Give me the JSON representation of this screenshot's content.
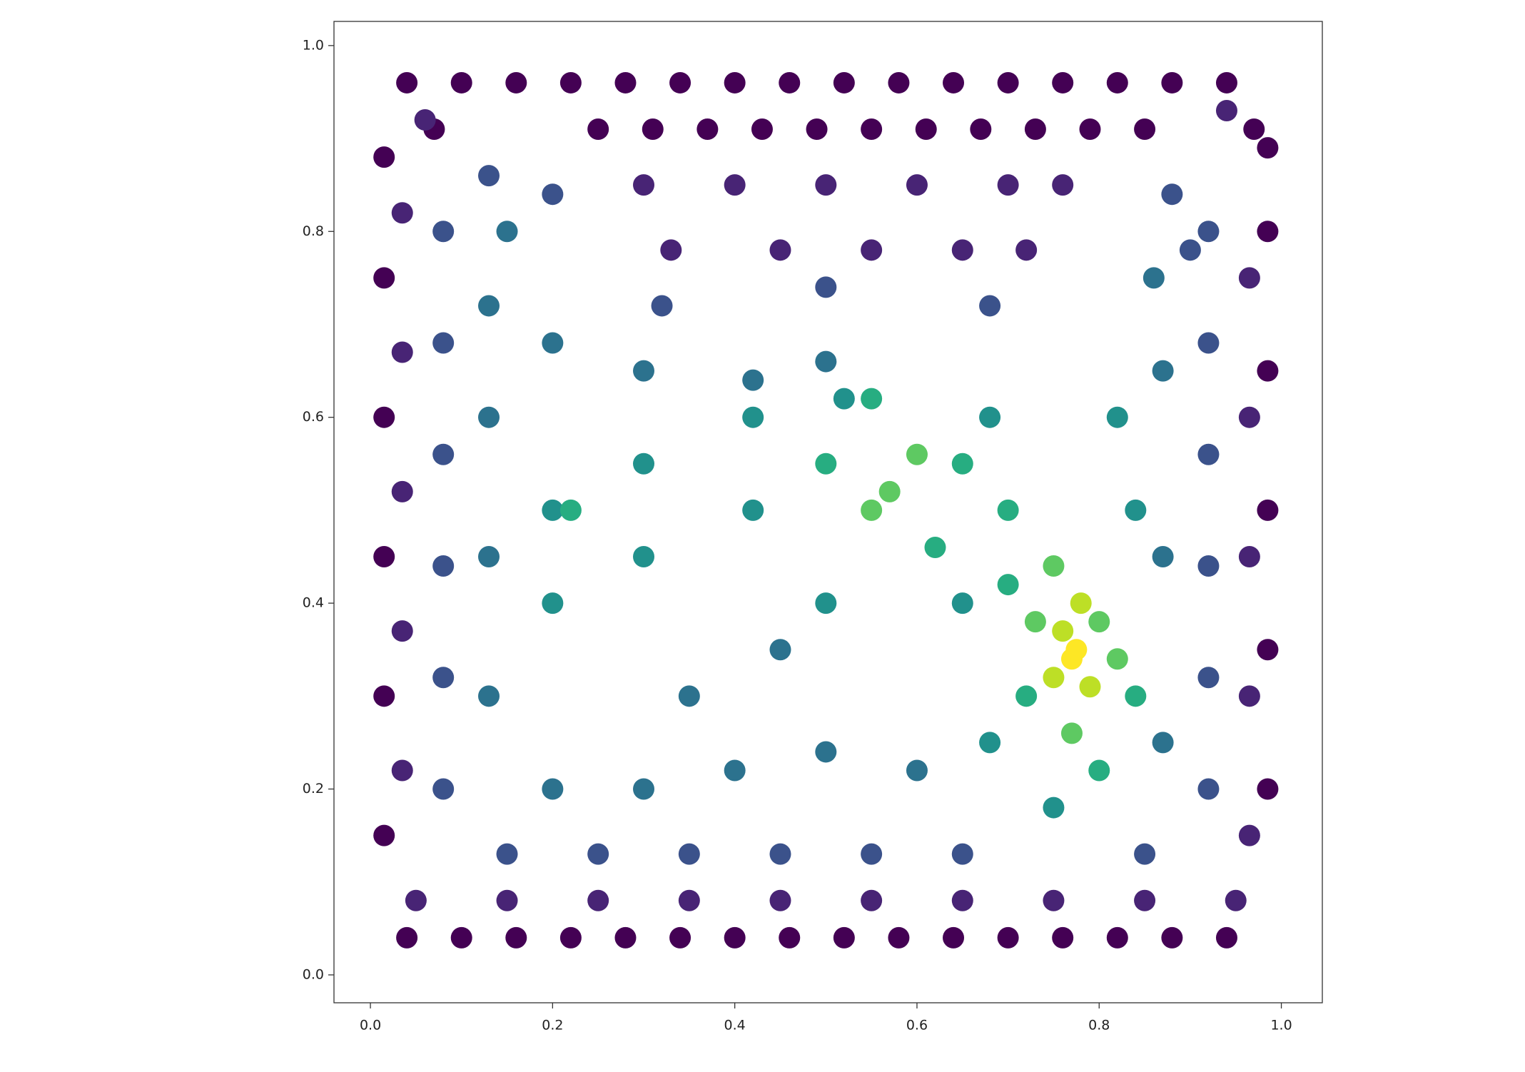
{
  "chart_data": {
    "type": "scatter",
    "xlim": [
      -0.04,
      1.045
    ],
    "ylim": [
      -0.03,
      1.026
    ],
    "xticks": [
      {
        "value": 0,
        "label": "0.0"
      },
      0.2,
      0.4,
      0.6,
      0.8,
      {
        "value": 1,
        "label": "1.0"
      }
    ],
    "yticks": [
      {
        "value": 0,
        "label": "0.0"
      },
      0.2,
      0.4,
      0.6,
      0.8,
      {
        "value": 1,
        "label": "1.0"
      }
    ],
    "grid": false,
    "series": [
      {
        "color": "#440154",
        "x": [
          0.04,
          0.1,
          0.16,
          0.22,
          0.28,
          0.34,
          0.4,
          0.46,
          0.52,
          0.58,
          0.64,
          0.7,
          0.76,
          0.82,
          0.88,
          0.94,
          0.07,
          0.25,
          0.31,
          0.37,
          0.43,
          0.49,
          0.55,
          0.61,
          0.67,
          0.73,
          0.79,
          0.85,
          0.97,
          0.04,
          0.1,
          0.16,
          0.22,
          0.28,
          0.34,
          0.4,
          0.46,
          0.52,
          0.58,
          0.64,
          0.7,
          0.76,
          0.82,
          0.88,
          0.94,
          0.015,
          0.015,
          0.015,
          0.015,
          0.015,
          0.015,
          0.985,
          0.985,
          0.985,
          0.985,
          0.985,
          0.985
        ],
        "y": [
          0.96,
          0.96,
          0.96,
          0.96,
          0.96,
          0.96,
          0.96,
          0.96,
          0.96,
          0.96,
          0.96,
          0.96,
          0.96,
          0.96,
          0.96,
          0.96,
          0.91,
          0.91,
          0.91,
          0.91,
          0.91,
          0.91,
          0.91,
          0.91,
          0.91,
          0.91,
          0.91,
          0.91,
          0.91,
          0.04,
          0.04,
          0.04,
          0.04,
          0.04,
          0.04,
          0.04,
          0.04,
          0.04,
          0.04,
          0.04,
          0.04,
          0.04,
          0.04,
          0.04,
          0.04,
          0.15,
          0.3,
          0.45,
          0.6,
          0.75,
          0.88,
          0.2,
          0.35,
          0.5,
          0.65,
          0.8,
          0.89
        ]
      },
      {
        "color": "#482475",
        "x": [
          0.3,
          0.4,
          0.5,
          0.6,
          0.7,
          0.76,
          0.33,
          0.45,
          0.55,
          0.65,
          0.72,
          0.05,
          0.15,
          0.25,
          0.35,
          0.45,
          0.55,
          0.65,
          0.75,
          0.85,
          0.95,
          0.035,
          0.035,
          0.035,
          0.035,
          0.035,
          0.965,
          0.965,
          0.965,
          0.965,
          0.965,
          0.06,
          0.94
        ],
        "y": [
          0.85,
          0.85,
          0.85,
          0.85,
          0.85,
          0.85,
          0.78,
          0.78,
          0.78,
          0.78,
          0.78,
          0.08,
          0.08,
          0.08,
          0.08,
          0.08,
          0.08,
          0.08,
          0.08,
          0.08,
          0.08,
          0.22,
          0.37,
          0.52,
          0.67,
          0.82,
          0.15,
          0.3,
          0.45,
          0.6,
          0.75,
          0.92,
          0.93
        ]
      },
      {
        "color": "#3b528b",
        "x": [
          0.08,
          0.08,
          0.08,
          0.08,
          0.08,
          0.08,
          0.92,
          0.92,
          0.92,
          0.92,
          0.92,
          0.92,
          0.15,
          0.25,
          0.35,
          0.45,
          0.55,
          0.65,
          0.85,
          0.13,
          0.2,
          0.88,
          0.9,
          0.32,
          0.5,
          0.68
        ],
        "y": [
          0.2,
          0.32,
          0.44,
          0.56,
          0.68,
          0.8,
          0.2,
          0.32,
          0.44,
          0.56,
          0.68,
          0.8,
          0.13,
          0.13,
          0.13,
          0.13,
          0.13,
          0.13,
          0.13,
          0.86,
          0.84,
          0.84,
          0.78,
          0.72,
          0.74,
          0.72
        ]
      },
      {
        "color": "#2c728e",
        "x": [
          0.13,
          0.13,
          0.13,
          0.13,
          0.87,
          0.87,
          0.87,
          0.2,
          0.3,
          0.4,
          0.5,
          0.6,
          0.2,
          0.3,
          0.42,
          0.5,
          0.35,
          0.45,
          0.15,
          0.86
        ],
        "y": [
          0.3,
          0.45,
          0.6,
          0.72,
          0.25,
          0.45,
          0.65,
          0.2,
          0.2,
          0.22,
          0.24,
          0.22,
          0.68,
          0.65,
          0.64,
          0.66,
          0.3,
          0.35,
          0.8,
          0.75
        ]
      },
      {
        "color": "#21918c",
        "x": [
          0.2,
          0.2,
          0.3,
          0.3,
          0.42,
          0.42,
          0.5,
          0.68,
          0.68,
          0.84,
          0.82,
          0.65,
          0.75,
          0.52
        ],
        "y": [
          0.5,
          0.4,
          0.55,
          0.45,
          0.5,
          0.6,
          0.4,
          0.6,
          0.25,
          0.5,
          0.6,
          0.4,
          0.18,
          0.62
        ]
      },
      {
        "color": "#27ad81",
        "x": [
          0.5,
          0.55,
          0.65,
          0.62,
          0.7,
          0.72,
          0.84,
          0.8,
          0.7,
          0.22
        ],
        "y": [
          0.55,
          0.62,
          0.55,
          0.46,
          0.42,
          0.3,
          0.3,
          0.22,
          0.5,
          0.5
        ]
      },
      {
        "color": "#5ec962",
        "x": [
          0.57,
          0.6,
          0.55,
          0.73,
          0.8,
          0.77,
          0.75,
          0.82
        ],
        "y": [
          0.52,
          0.56,
          0.5,
          0.38,
          0.38,
          0.26,
          0.44,
          0.34
        ]
      },
      {
        "color": "#bddf26",
        "x": [
          0.76,
          0.79,
          0.75,
          0.78
        ],
        "y": [
          0.37,
          0.31,
          0.32,
          0.4
        ]
      },
      {
        "color": "#fde725",
        "x": [
          0.77,
          0.775
        ],
        "y": [
          0.34,
          0.35
        ]
      }
    ]
  }
}
